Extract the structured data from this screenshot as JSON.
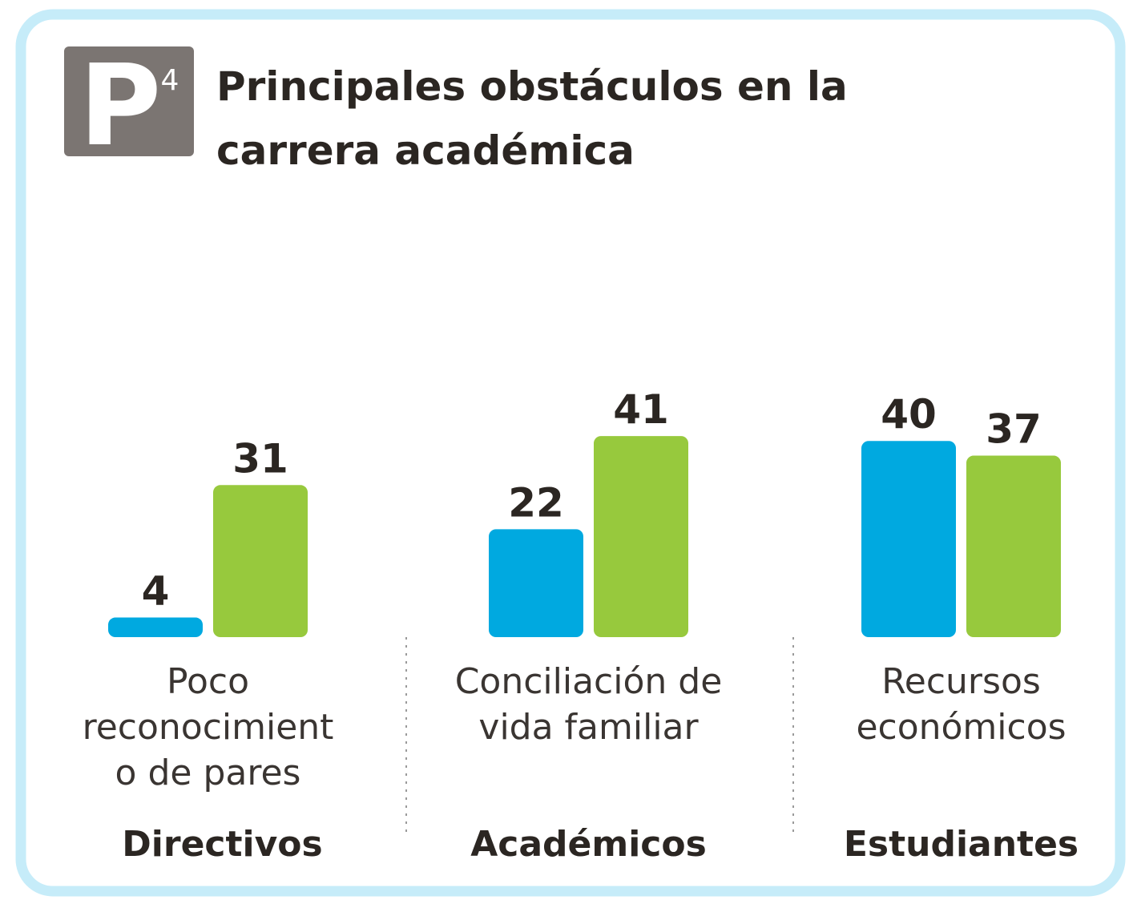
{
  "chart_data": {
    "type": "bar",
    "badge": {
      "letter": "P",
      "number": "4"
    },
    "title": [
      "Principales obstáculos en la",
      "carrera académica"
    ],
    "categories": [
      [
        "Poco",
        "reconocimient",
        "o de pares"
      ],
      [
        "Conciliación de",
        "vida familiar"
      ],
      [
        "Recursos",
        "económicos"
      ]
    ],
    "groups": [
      "Directivos",
      "Académicos",
      "Estudiantes"
    ],
    "series": [
      {
        "color": "#00a9e0",
        "values": [
          4,
          22,
          40
        ]
      },
      {
        "color": "#97c93d",
        "values": [
          31,
          41,
          37
        ]
      }
    ]
  }
}
